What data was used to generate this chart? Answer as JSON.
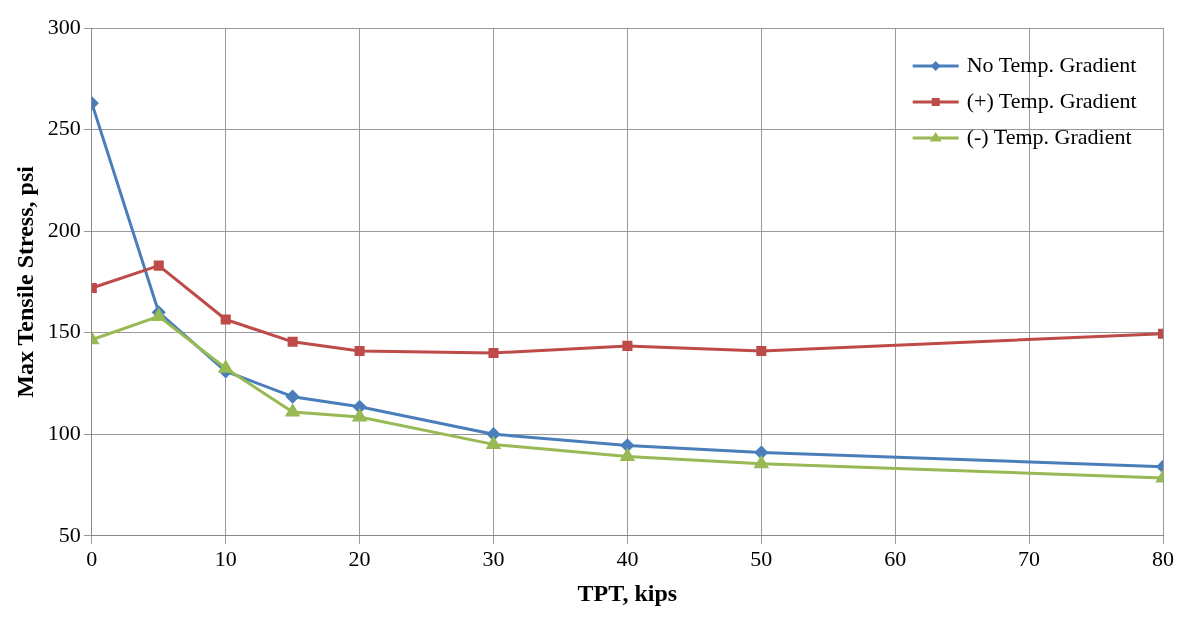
{
  "chart_data": {
    "type": "line",
    "xlabel": "TPT, kips",
    "ylabel": "Max Tensile Stress, psi",
    "x": [
      0,
      5,
      10,
      15,
      20,
      30,
      40,
      50,
      80
    ],
    "series": [
      {
        "name": "No Temp. Gradient",
        "color": "#4a7ebb",
        "marker": "diamond",
        "values": [
          263,
          160,
          131,
          118.5,
          113.5,
          100,
          94.5,
          91,
          84
        ]
      },
      {
        "name": "(+) Temp. Gradient",
        "color": "#be4b48",
        "marker": "square",
        "values": [
          172,
          183,
          156.5,
          145.5,
          141,
          140,
          143.5,
          141,
          149.5
        ]
      },
      {
        "name": "(-) Temp. Gradient",
        "color": "#98b954",
        "marker": "triangle",
        "values": [
          146.5,
          158,
          132.5,
          111,
          108.5,
          95,
          89,
          85.5,
          78.5
        ]
      }
    ],
    "xlim": [
      0,
      80
    ],
    "xticks": [
      0,
      10,
      20,
      30,
      40,
      50,
      60,
      70,
      80
    ],
    "ylim": [
      50,
      300
    ],
    "yticks": [
      50,
      100,
      150,
      200,
      250,
      300
    ],
    "grid": true,
    "legend": "top right",
    "line_style": "solid"
  }
}
